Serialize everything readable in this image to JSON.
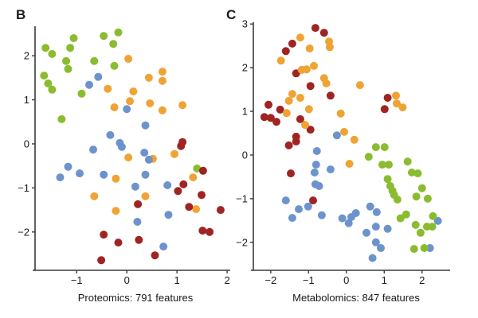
{
  "figure": {
    "background": "#ffffff"
  },
  "chart_data": [
    {
      "type": "scatter",
      "panel_label": "B",
      "xlabel": "Proteomics: 791 features",
      "ylabel": "",
      "grid": false,
      "legend": "none",
      "xlim": [
        -1.83,
        2.03
      ],
      "ylim": [
        -2.87,
        2.67
      ],
      "x_ticks": [
        {
          "v": -1,
          "label": "−1"
        },
        {
          "v": 0,
          "label": "0"
        },
        {
          "v": 1,
          "label": "1"
        },
        {
          "v": 2,
          "label": "2"
        }
      ],
      "y_ticks": [
        {
          "v": 2,
          "label": "2"
        },
        {
          "v": 1,
          "label": "1"
        },
        {
          "v": 0,
          "label": "0"
        },
        {
          "v": -1,
          "label": "−1"
        },
        {
          "v": -2,
          "label": "−2"
        }
      ],
      "series": [
        {
          "name": "green-group",
          "color": "#8abc2f",
          "points": [
            [
              -1.62,
              2.18
            ],
            [
              -1.49,
              2.04
            ],
            [
              -1.06,
              2.4
            ],
            [
              -1.13,
              2.18
            ],
            [
              -1.21,
              1.88
            ],
            [
              -1.17,
              1.7
            ],
            [
              -1.65,
              1.55
            ],
            [
              -1.57,
              1.37
            ],
            [
              -1.49,
              1.23
            ],
            [
              -0.9,
              1.14
            ],
            [
              -0.65,
              1.88
            ],
            [
              -0.46,
              2.45
            ],
            [
              -0.17,
              2.53
            ],
            [
              -0.27,
              2.27
            ],
            [
              -0.25,
              1.77
            ],
            [
              -1.3,
              0.56
            ],
            [
              1.4,
              -0.56
            ]
          ]
        },
        {
          "name": "orange-group",
          "color": "#efa334",
          "points": [
            [
              0.03,
              1.93
            ],
            [
              0.71,
              1.64
            ],
            [
              0.44,
              1.5
            ],
            [
              0.71,
              1.43
            ],
            [
              0.13,
              1.19
            ],
            [
              0.06,
              0.97
            ],
            [
              0.46,
              0.92
            ],
            [
              0.71,
              0.76
            ],
            [
              1.11,
              0.88
            ],
            [
              -0.38,
              1.25
            ],
            [
              -0.25,
              0.83
            ],
            [
              0.03,
              -0.31
            ],
            [
              0.52,
              -0.34
            ],
            [
              0.95,
              -0.23
            ],
            [
              -0.22,
              -0.79
            ],
            [
              -0.65,
              -1.19
            ],
            [
              -0.22,
              -1.52
            ],
            [
              1.32,
              -0.76
            ],
            [
              0.37,
              -1.19
            ],
            [
              1.38,
              -1.48
            ]
          ]
        },
        {
          "name": "blue-group",
          "color": "#6d93cc",
          "points": [
            [
              -0.57,
              1.52
            ],
            [
              -0.75,
              1.34
            ],
            [
              0.0,
              0.79
            ],
            [
              0.37,
              0.42
            ],
            [
              -0.33,
              0.2
            ],
            [
              -0.14,
              0.02
            ],
            [
              -0.67,
              -0.13
            ],
            [
              -0.1,
              -0.07
            ],
            [
              -1.17,
              -0.52
            ],
            [
              -1.33,
              -0.76
            ],
            [
              -0.94,
              -0.67
            ],
            [
              -0.46,
              -0.7
            ],
            [
              0.35,
              -0.2
            ],
            [
              0.44,
              -0.36
            ],
            [
              0.37,
              -0.7
            ],
            [
              0.17,
              -0.97
            ],
            [
              0.81,
              -0.94
            ],
            [
              0.21,
              -1.77
            ],
            [
              0.83,
              -1.61
            ],
            [
              0.73,
              -2.33
            ]
          ]
        },
        {
          "name": "red-group",
          "color": "#9f2422",
          "points": [
            [
              1.11,
              0.04
            ],
            [
              1.08,
              -0.05
            ],
            [
              1.52,
              -0.61
            ],
            [
              1.13,
              -0.92
            ],
            [
              1.02,
              -1.07
            ],
            [
              1.49,
              -1.16
            ],
            [
              0.22,
              -1.37
            ],
            [
              1.24,
              -1.43
            ],
            [
              1.87,
              -1.5
            ],
            [
              1.51,
              -1.97
            ],
            [
              1.65,
              -2.0
            ],
            [
              -0.46,
              -2.06
            ],
            [
              -0.17,
              -2.24
            ],
            [
              0.24,
              -2.18
            ],
            [
              0.56,
              -2.53
            ],
            [
              -0.51,
              -2.64
            ]
          ]
        }
      ]
    },
    {
      "type": "scatter",
      "panel_label": "C",
      "xlabel": "Metabolomics: 847 features",
      "ylabel": "",
      "grid": false,
      "legend": "none",
      "xlim": [
        -2.46,
        2.7
      ],
      "ylim": [
        -2.64,
        3.04
      ],
      "x_ticks": [
        {
          "v": -2,
          "label": "−2"
        },
        {
          "v": -1,
          "label": "−1"
        },
        {
          "v": 0,
          "label": "0"
        },
        {
          "v": 1,
          "label": "1"
        },
        {
          "v": 2,
          "label": "2"
        }
      ],
      "y_ticks": [
        {
          "v": 3,
          "label": "3"
        },
        {
          "v": 2,
          "label": "2"
        },
        {
          "v": 1,
          "label": "1"
        },
        {
          "v": 0,
          "label": "0"
        },
        {
          "v": -1,
          "label": "−1"
        },
        {
          "v": -2,
          "label": "−2"
        }
      ],
      "series": [
        {
          "name": "red-group",
          "color": "#9f2422",
          "points": [
            [
              -0.82,
              2.91
            ],
            [
              -0.59,
              2.8
            ],
            [
              -1.43,
              2.55
            ],
            [
              -1.6,
              2.38
            ],
            [
              -1.33,
              1.87
            ],
            [
              -0.95,
              1.58
            ],
            [
              -0.42,
              1.36
            ],
            [
              -2.06,
              1.15
            ],
            [
              -1.75,
              1.04
            ],
            [
              -2.17,
              0.87
            ],
            [
              -2.0,
              0.85
            ],
            [
              -1.85,
              0.76
            ],
            [
              -1.22,
              0.82
            ],
            [
              -1.33,
              0.42
            ],
            [
              -0.95,
              0.58
            ],
            [
              1.09,
              1.31
            ],
            [
              1.01,
              1.05
            ],
            [
              -1.52,
              0.22
            ],
            [
              -1.33,
              0.31
            ],
            [
              -1.47,
              -0.42
            ],
            [
              -0.88,
              -1.04
            ]
          ]
        },
        {
          "name": "orange-group",
          "color": "#efa334",
          "points": [
            [
              -1.22,
              2.69
            ],
            [
              -0.46,
              2.6
            ],
            [
              -0.44,
              2.47
            ],
            [
              -0.97,
              2.44
            ],
            [
              -1.73,
              2.16
            ],
            [
              -1.05,
              1.96
            ],
            [
              -0.86,
              2.04
            ],
            [
              -1.18,
              1.95
            ],
            [
              -0.59,
              1.76
            ],
            [
              -0.53,
              1.64
            ],
            [
              -1.43,
              1.4
            ],
            [
              -1.52,
              1.24
            ],
            [
              -1.22,
              1.31
            ],
            [
              -1.58,
              0.96
            ],
            [
              -0.99,
              1.05
            ],
            [
              -1.09,
              0.69
            ],
            [
              -0.15,
              0.95
            ],
            [
              -0.06,
              0.53
            ],
            [
              0.36,
              1.6
            ],
            [
              1.31,
              1.36
            ],
            [
              1.33,
              1.18
            ],
            [
              1.49,
              1.09
            ],
            [
              0.21,
              0.35
            ],
            [
              0.08,
              -0.2
            ]
          ]
        },
        {
          "name": "blue-group",
          "color": "#6d93cc",
          "points": [
            [
              -0.25,
              0.45
            ],
            [
              -0.78,
              0.09
            ],
            [
              -0.8,
              -0.22
            ],
            [
              -0.84,
              -0.4
            ],
            [
              -0.42,
              -0.33
            ],
            [
              -0.82,
              -0.67
            ],
            [
              -0.72,
              -0.71
            ],
            [
              -1.6,
              -1.04
            ],
            [
              -1.26,
              -1.24
            ],
            [
              -1.01,
              -1.18
            ],
            [
              -1.43,
              -1.44
            ],
            [
              -0.65,
              -1.38
            ],
            [
              -0.11,
              -1.45
            ],
            [
              0.06,
              -1.56
            ],
            [
              0.63,
              -1.18
            ],
            [
              0.25,
              -1.33
            ],
            [
              0.13,
              -1.42
            ],
            [
              0.8,
              -1.31
            ],
            [
              2.42,
              -1.51
            ],
            [
              0.78,
              -1.64
            ],
            [
              1.09,
              -1.69
            ],
            [
              0.53,
              -1.78
            ],
            [
              0.78,
              -2.0
            ],
            [
              0.91,
              -2.13
            ],
            [
              2.21,
              -2.13
            ],
            [
              0.69,
              -2.36
            ]
          ]
        },
        {
          "name": "green-group",
          "color": "#8abc2f",
          "points": [
            [
              0.78,
              0.18
            ],
            [
              1.01,
              0.18
            ],
            [
              0.59,
              -0.04
            ],
            [
              0.95,
              -0.22
            ],
            [
              1.12,
              -0.22
            ],
            [
              1.62,
              -0.15
            ],
            [
              1.73,
              -0.4
            ],
            [
              1.89,
              -0.42
            ],
            [
              1.09,
              -0.55
            ],
            [
              1.16,
              -0.71
            ],
            [
              1.22,
              -0.82
            ],
            [
              1.26,
              -0.91
            ],
            [
              1.35,
              -1.02
            ],
            [
              2.0,
              -0.76
            ],
            [
              1.85,
              -0.95
            ],
            [
              2.15,
              -1.0
            ],
            [
              1.58,
              -1.36
            ],
            [
              1.43,
              -1.45
            ],
            [
              2.29,
              -1.4
            ],
            [
              2.27,
              -1.64
            ],
            [
              1.83,
              -1.6
            ],
            [
              1.96,
              -1.78
            ],
            [
              2.13,
              -1.64
            ],
            [
              1.79,
              -2.15
            ],
            [
              2.06,
              -2.13
            ]
          ]
        }
      ]
    }
  ]
}
